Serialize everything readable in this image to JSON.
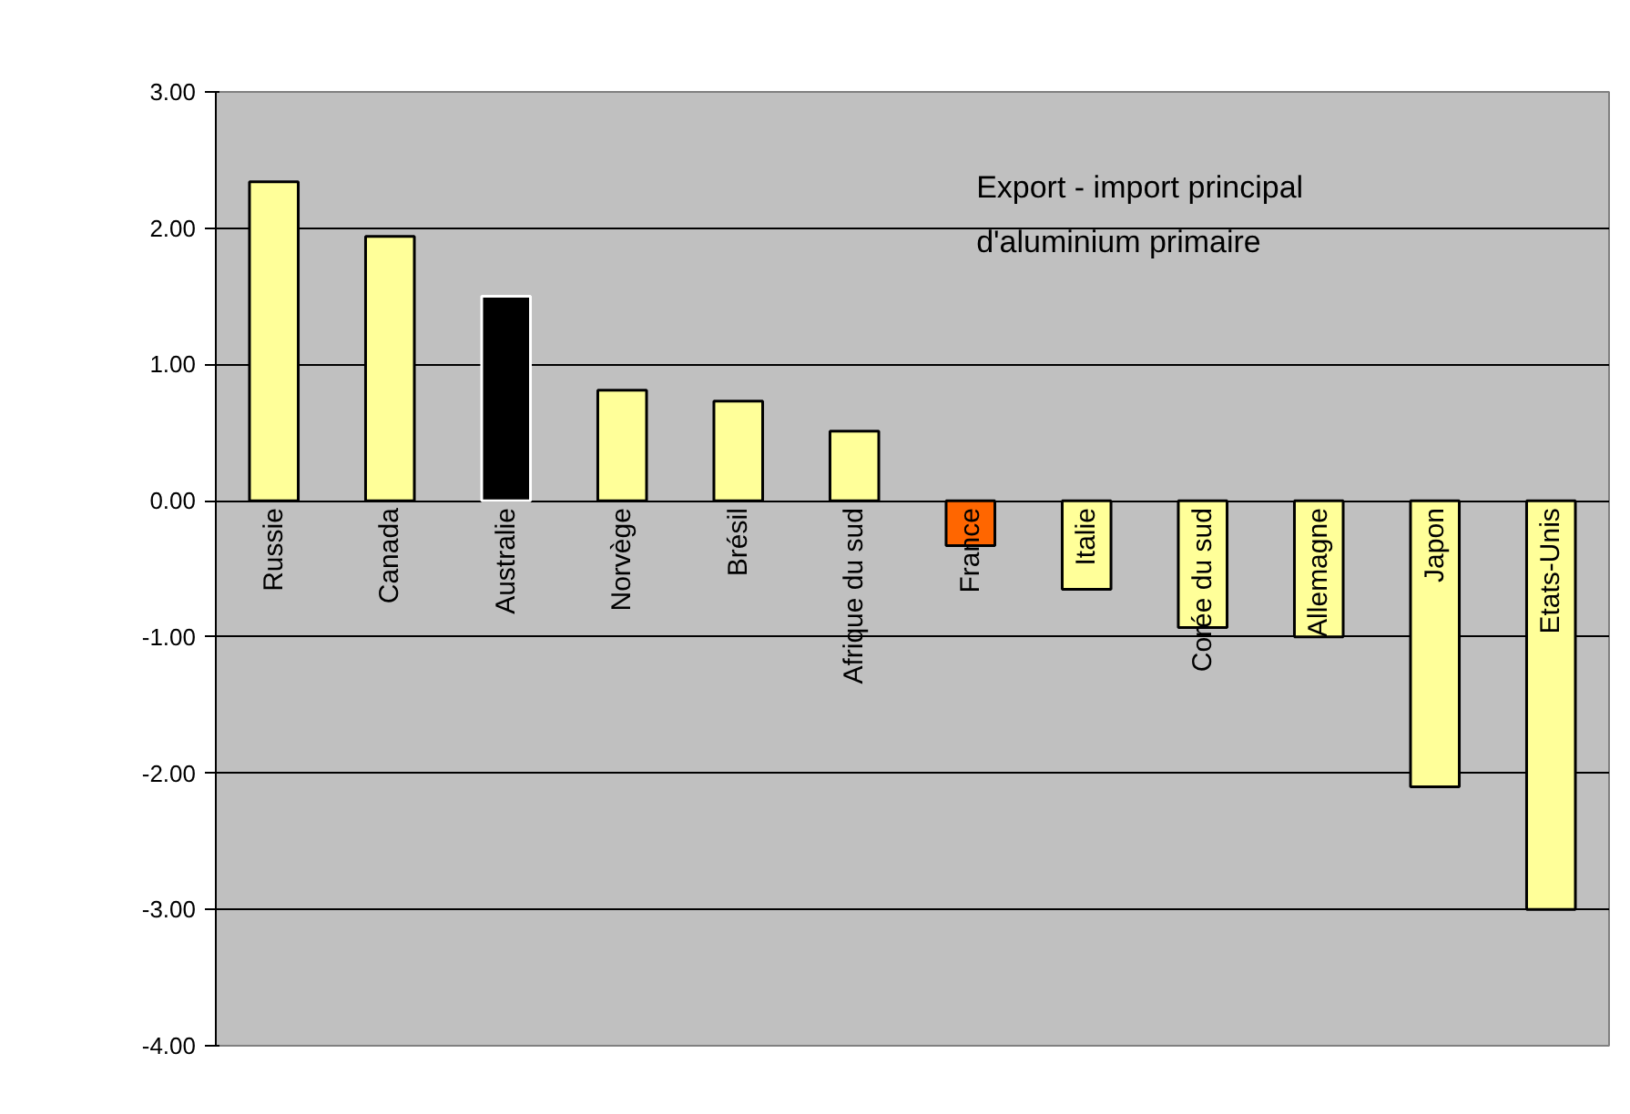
{
  "chart_data": {
    "type": "bar",
    "title": "Export - import principal\nd'aluminium primaire",
    "categories": [
      "Russie",
      "Canada",
      "Australie",
      "Norvège",
      "Brésil",
      "Afrique du sud",
      "France",
      "Italie",
      "Corée du sud",
      "Allemagne",
      "Japon",
      "Etats-Unis"
    ],
    "values": [
      2.34,
      1.94,
      1.5,
      0.81,
      0.73,
      0.51,
      -0.33,
      -0.65,
      -0.93,
      -1.0,
      -2.1,
      -3.0
    ],
    "colors": [
      "#ffff99",
      "#ffff99",
      "#000000",
      "#ffff99",
      "#ffff99",
      "#ffff99",
      "#ff6600",
      "#ffff99",
      "#ffff99",
      "#ffff99",
      "#ffff99",
      "#ffff99"
    ],
    "ylim": [
      -4,
      3
    ],
    "yticks": [
      {
        "value": -4,
        "label": "-4.00"
      },
      {
        "value": -3,
        "label": "-3.00"
      },
      {
        "value": -2,
        "label": "-2.00"
      },
      {
        "value": -1,
        "label": "-1.00"
      },
      {
        "value": 0,
        "label": "0.00"
      },
      {
        "value": 1,
        "label": "1.00"
      },
      {
        "value": 2,
        "label": "2.00"
      },
      {
        "value": 3,
        "label": "3.00"
      }
    ],
    "grid": "y"
  }
}
